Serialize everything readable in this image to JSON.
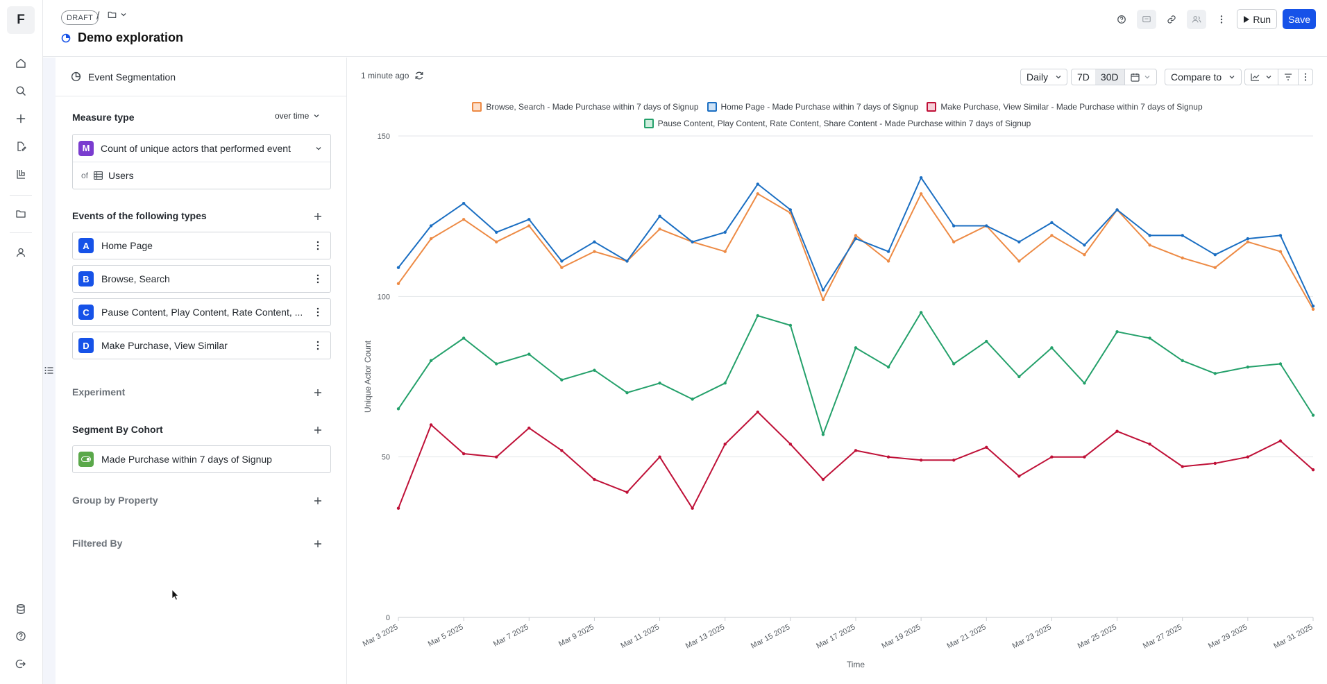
{
  "app": {
    "logo_letter": "F",
    "accent": "#1652e8"
  },
  "header": {
    "draft_badge": "DRAFT",
    "crumb_separator": "/",
    "title": "Demo exploration",
    "run_label": "Run",
    "save_label": "Save"
  },
  "rail": {
    "items": [
      "home-icon",
      "search-icon",
      "plus-icon",
      "edit-file-icon",
      "lab-icon",
      "folder-icon",
      "user-icon"
    ],
    "bottom_items": [
      "database-icon",
      "help-icon",
      "logout-icon"
    ]
  },
  "panel": {
    "header_label": "Event Segmentation",
    "measure": {
      "title": "Measure type",
      "mode": "over time",
      "selected_tag": "M",
      "selected_label": "Count of unique actors that performed event",
      "of_label": "of",
      "entity_label": "Users"
    },
    "events": {
      "title": "Events of the following types",
      "items": [
        {
          "tag": "A",
          "label": "Home Page"
        },
        {
          "tag": "B",
          "label": "Browse, Search"
        },
        {
          "tag": "C",
          "label": "Pause Content, Play Content, Rate Content, ..."
        },
        {
          "tag": "D",
          "label": "Make Purchase, View Similar"
        }
      ]
    },
    "experiment_title": "Experiment",
    "cohort": {
      "title": "Segment By Cohort",
      "item": "Made Purchase within 7 days of Signup"
    },
    "group_by_title": "Group by Property",
    "filtered_by_title": "Filtered By"
  },
  "toolbar": {
    "updated": "1 minute ago",
    "granularity": "Daily",
    "range_7d": "7D",
    "range_30d": "30D",
    "compare": "Compare to"
  },
  "chart_data": {
    "type": "line",
    "title": "",
    "xlabel": "Time",
    "ylabel": "Unique Actor Count",
    "ylim": [
      0,
      150
    ],
    "yticks": [
      0,
      50,
      100,
      150
    ],
    "grid": true,
    "legend_position": "top-center",
    "x": [
      "Mar 3 2025",
      "Mar 4 2025",
      "Mar 5 2025",
      "Mar 6 2025",
      "Mar 7 2025",
      "Mar 8 2025",
      "Mar 9 2025",
      "Mar 10 2025",
      "Mar 11 2025",
      "Mar 12 2025",
      "Mar 13 2025",
      "Mar 14 2025",
      "Mar 15 2025",
      "Mar 16 2025",
      "Mar 17 2025",
      "Mar 18 2025",
      "Mar 19 2025",
      "Mar 20 2025",
      "Mar 21 2025",
      "Mar 22 2025",
      "Mar 23 2025",
      "Mar 24 2025",
      "Mar 25 2025",
      "Mar 26 2025",
      "Mar 27 2025",
      "Mar 28 2025",
      "Mar 29 2025",
      "Mar 30 2025",
      "Mar 31 2025"
    ],
    "xticks": [
      "Mar 3 2025",
      "Mar 5 2025",
      "Mar 7 2025",
      "Mar 9 2025",
      "Mar 11 2025",
      "Mar 13 2025",
      "Mar 15 2025",
      "Mar 17 2025",
      "Mar 19 2025",
      "Mar 21 2025",
      "Mar 23 2025",
      "Mar 25 2025",
      "Mar 27 2025",
      "Mar 29 2025",
      "Mar 31 2025"
    ],
    "series": [
      {
        "name": "Browse, Search - Made Purchase within 7 days of Signup",
        "color": "#ed8a44",
        "values": [
          104,
          118,
          124,
          117,
          122,
          109,
          114,
          111,
          121,
          117,
          114,
          132,
          126,
          99,
          119,
          111,
          132,
          117,
          122,
          111,
          119,
          113,
          127,
          116,
          112,
          109,
          117,
          114,
          96
        ]
      },
      {
        "name": "Home Page - Made Purchase within 7 days of Signup",
        "color": "#1a6ec2",
        "values": [
          109,
          122,
          129,
          120,
          124,
          111,
          117,
          111,
          125,
          117,
          120,
          135,
          127,
          102,
          118,
          114,
          137,
          122,
          122,
          117,
          123,
          116,
          127,
          119,
          119,
          113,
          118,
          119,
          97
        ]
      },
      {
        "name": "Make Purchase, View Similar - Made Purchase within 7 days of Signup",
        "color": "#bf1037",
        "values": [
          34,
          60,
          51,
          50,
          59,
          52,
          43,
          39,
          50,
          34,
          54,
          64,
          54,
          43,
          52,
          50,
          49,
          49,
          53,
          44,
          50,
          50,
          58,
          54,
          47,
          48,
          50,
          55,
          46
        ]
      },
      {
        "name": "Pause Content, Play Content, Rate Content, Share Content - Made Purchase within 7 days of Signup",
        "color": "#23a06a",
        "values": [
          65,
          80,
          87,
          79,
          82,
          74,
          77,
          70,
          73,
          68,
          73,
          94,
          91,
          57,
          84,
          78,
          95,
          79,
          86,
          75,
          84,
          73,
          89,
          87,
          80,
          76,
          78,
          79,
          63
        ]
      }
    ]
  }
}
